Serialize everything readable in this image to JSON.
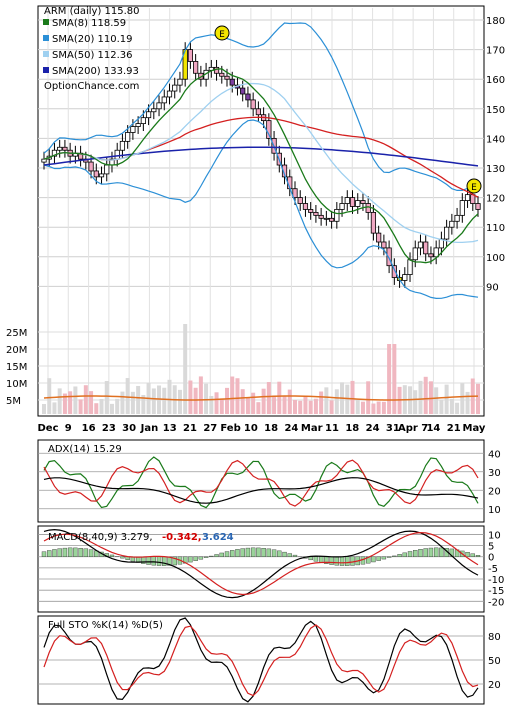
{
  "chart_data": {
    "type": "candlestick",
    "title": "ARM (daily) 115.80",
    "watermark": "OptionChance.com",
    "legend": [
      {
        "label": "SMA(8) 118.59",
        "color": "#1a7a1a"
      },
      {
        "label": "SMA(20) 110.19",
        "color": "#2b8fd6"
      },
      {
        "label": "SMA(50) 112.36",
        "color": "#9fd0f0"
      },
      {
        "label": "SMA(200) 133.93",
        "color": "#1a22aa"
      }
    ],
    "price_axis": {
      "min": 80,
      "max": 180,
      "ticks": [
        "180",
        "170",
        "160",
        "150",
        "140",
        "130",
        "120",
        "110",
        "100",
        "90"
      ]
    },
    "volume_axis": {
      "ticks": [
        "25M",
        "20M",
        "15M",
        "10M",
        "5M"
      ]
    },
    "x_labels": [
      "Dec",
      "9",
      "16",
      "23",
      "30",
      "Jan",
      "13",
      "21",
      "27",
      "Feb",
      "10",
      "18",
      "24",
      "Mar",
      "11",
      "18",
      "24",
      "31",
      "Apr 7",
      "14",
      "21",
      "May"
    ],
    "earnings_marker": "E",
    "closes": [
      133,
      134,
      136,
      137,
      136,
      134,
      135,
      133,
      132,
      129,
      127,
      128,
      131,
      133,
      136,
      139,
      142,
      144,
      145,
      147,
      149,
      150,
      152,
      154,
      156,
      158,
      160,
      170,
      166,
      162,
      160,
      163,
      164,
      162,
      161,
      160,
      158,
      157,
      155,
      153,
      150,
      148,
      146,
      140,
      135,
      131,
      127,
      123,
      120,
      118,
      116,
      115,
      114,
      113,
      113,
      112,
      116,
      118,
      120,
      117,
      119,
      118,
      115,
      108,
      105,
      103,
      97,
      93,
      92,
      94,
      99,
      103,
      105,
      101,
      100,
      103,
      106,
      110,
      112,
      114,
      119,
      121,
      118,
      116
    ],
    "indicators": {
      "adx": {
        "label": "ADX(14) 15.29",
        "ticks": [
          "40",
          "30",
          "20",
          "10"
        ]
      },
      "macd": {
        "label": "MACD(8,40,9) 3.279,",
        "value_a": "-0.342,",
        "value_b": "3.624",
        "ticks": [
          "10",
          "5",
          "0",
          "-5",
          "-10",
          "-15",
          "-20"
        ]
      },
      "stochastic": {
        "label": "Full STO %K(14) %D(5)",
        "ticks": [
          "80",
          "50",
          "20"
        ]
      }
    }
  }
}
